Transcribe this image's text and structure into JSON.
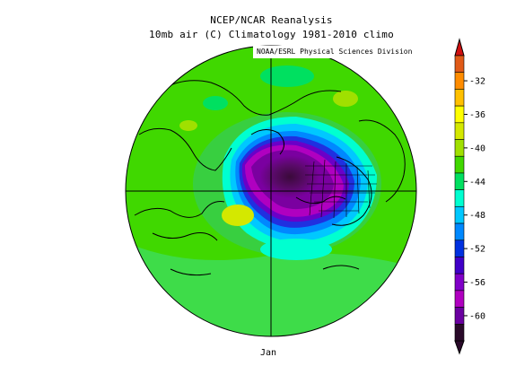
{
  "header": {
    "title": "NCEP/NCAR Reanalysis",
    "subtitle": "10mb air (C) Climatology 1981-2010 climo"
  },
  "credit": "NOAA/ESRL Physical Sciences Division",
  "month_label": "Jan",
  "map": {
    "projection": "north polar stereographic",
    "grid": true,
    "coastlines": true
  },
  "legend": {
    "levels": [
      -32,
      -36,
      -40,
      -44,
      -48,
      -52,
      -56,
      -60
    ],
    "colors_top_to_bottom": [
      "#e05a18",
      "#ff8c00",
      "#ffc000",
      "#ffff00",
      "#d4e800",
      "#a0e000",
      "#40d800",
      "#00e060",
      "#00ffd0",
      "#00c8ff",
      "#0088ff",
      "#0030e0",
      "#4000c8",
      "#8000c8",
      "#b000c0",
      "#6a00a0",
      "#2a0a2a"
    ]
  }
}
